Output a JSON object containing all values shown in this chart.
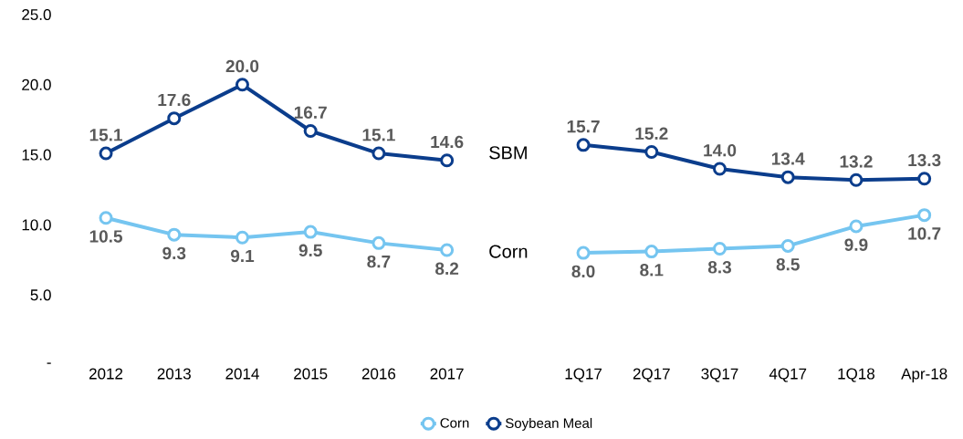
{
  "chart_data": {
    "type": "line",
    "categories": [
      "2012",
      "2013",
      "2014",
      "2015",
      "2016",
      "2017",
      null,
      "1Q17",
      "2Q17",
      "3Q17",
      "4Q17",
      "1Q18",
      "Apr-18"
    ],
    "series": [
      {
        "name": "Corn",
        "color": "#75c5f0",
        "values": [
          10.5,
          9.3,
          9.1,
          9.5,
          8.7,
          8.2,
          null,
          8.0,
          8.1,
          8.3,
          8.5,
          9.9,
          10.7
        ],
        "value_labels": [
          "10.5",
          "9.3",
          "9.1",
          "9.5",
          "8.7",
          "8.2",
          null,
          "8.0",
          "8.1",
          "8.3",
          "8.5",
          "9.9",
          "10.7"
        ]
      },
      {
        "name": "Soybean Meal",
        "color": "#0b3d8c",
        "values": [
          15.1,
          17.6,
          20.0,
          16.7,
          15.1,
          14.6,
          null,
          15.7,
          15.2,
          14.0,
          13.4,
          13.2,
          13.3
        ],
        "value_labels": [
          "15.1",
          "17.6",
          "20.0",
          "16.7",
          "15.1",
          "14.6",
          null,
          "15.7",
          "15.2",
          "14.0",
          "13.4",
          "13.2",
          "13.3"
        ]
      }
    ],
    "ylim": [
      0,
      25
    ],
    "yticks": [
      {
        "value": 0,
        "label": "-"
      },
      {
        "value": 5,
        "label": "5.0"
      },
      {
        "value": 10,
        "label": "10.0"
      },
      {
        "value": 15,
        "label": "15.0"
      },
      {
        "value": 20,
        "label": "20.0"
      },
      {
        "value": 25,
        "label": "25.0"
      }
    ],
    "annotations": [
      "SBM",
      "Corn"
    ],
    "marker": "circle",
    "legend": "bottom"
  }
}
